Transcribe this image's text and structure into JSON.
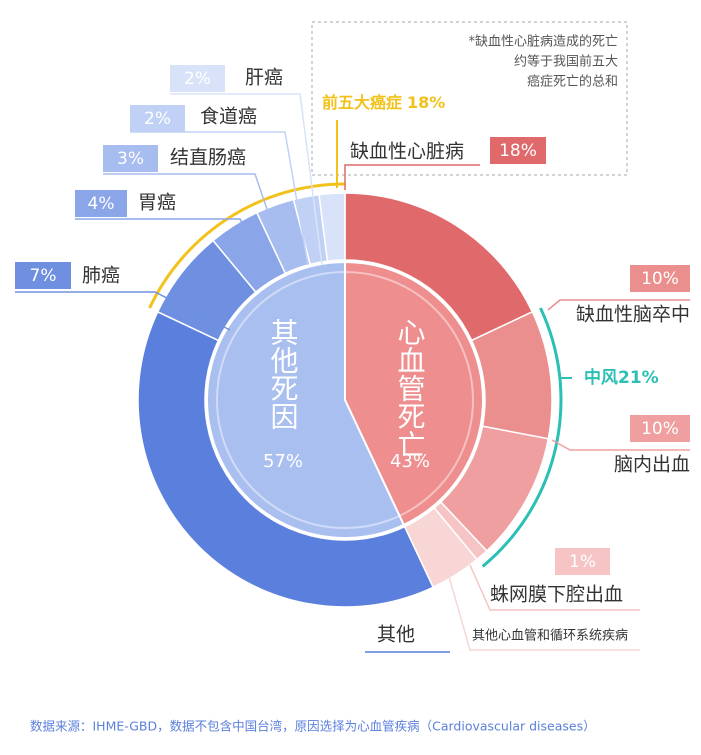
{
  "chart_data": {
    "type": "sunburst",
    "annotation": [
      "*缺血性心脏病造成的死亡",
      "约等于我国前五大",
      "癌症死亡的总和"
    ],
    "source": "数据来源：IHME-GBD，数据不包含中国台湾，原因选择为心血管疾病（Cardiovascular diseases）",
    "inner": [
      {
        "name": "心血管死亡",
        "value": 43,
        "value_label": "43%",
        "color": "#ee8e8e"
      },
      {
        "name": "其他死因",
        "value": 57,
        "value_label": "57%",
        "color": "#a9bff0"
      }
    ],
    "outer": {
      "categories": [
        "缺血性心脏病",
        "缺血性脑卒中",
        "脑内出血",
        "蛛网膜下腔出血",
        "其他心血管和循环系统疾病",
        "其他",
        "肺癌",
        "胃癌",
        "结直肠癌",
        "食道癌",
        "肝癌"
      ],
      "values": [
        18,
        10,
        10,
        1,
        4,
        39,
        7,
        4,
        3,
        2,
        2
      ],
      "value_labels": [
        "18%",
        "10%",
        "10%",
        "1%",
        null,
        null,
        "7%",
        "4%",
        "3%",
        "2%",
        "2%"
      ],
      "colors": [
        "#e0696b",
        "#ea8e8e",
        "#ef9f9f",
        "#f6c4c4",
        "#f8d6d6",
        "#5b7fdc",
        "#6f90e0",
        "#8aa6e8",
        "#a7bcef",
        "#c1d1f5",
        "#d8e3fa"
      ]
    },
    "groups": [
      {
        "name": "前五大癌症",
        "value": 18,
        "value_label": "18%",
        "color": "#f2c21b"
      },
      {
        "name": "中风",
        "value": 21,
        "value_label": "21%",
        "color": "#2bbfb5"
      }
    ]
  }
}
